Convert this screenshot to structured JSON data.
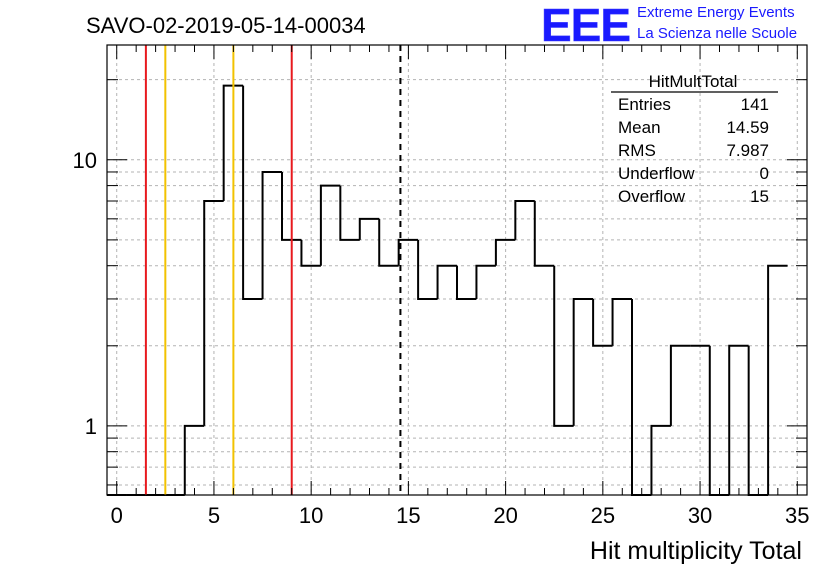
{
  "header": {
    "run_title": "SAVO-02-2019-05-14-00034",
    "logo_text": "EEE",
    "project_line1": "Extreme Energy Events",
    "project_line2": "La Scienza nelle Scuole",
    "logo_color": "#1a1aff"
  },
  "stats_box": {
    "name": "HitMultTotal",
    "rows": [
      {
        "label": "Entries",
        "value": "141"
      },
      {
        "label": "Mean",
        "value": "14.59"
      },
      {
        "label": "RMS",
        "value": "7.987"
      },
      {
        "label": "Underflow",
        "value": "0"
      },
      {
        "label": "Overflow",
        "value": "15"
      }
    ]
  },
  "chart_data": {
    "type": "histogram",
    "title": "SAVO-02-2019-05-14-00034",
    "xlabel": "Hit multiplicity Total",
    "ylabel": "",
    "xlim": [
      -0.5,
      35.5
    ],
    "ylim": [
      0.55,
      27
    ],
    "y_scale": "log",
    "grid": true,
    "x_ticks": [
      0,
      5,
      10,
      15,
      20,
      25,
      30,
      35
    ],
    "y_ticks": [
      {
        "value": 1,
        "label": "1"
      },
      {
        "value": 10,
        "label": "10"
      }
    ],
    "bins": {
      "edges_start": -0.5,
      "width": 1,
      "counts": [
        0,
        0,
        0,
        0,
        1,
        7,
        19,
        3,
        9,
        5,
        4,
        8,
        5,
        6,
        4,
        5,
        3,
        4,
        3,
        4,
        5,
        7,
        4,
        1,
        3,
        2,
        3,
        0,
        1,
        2,
        2,
        0,
        2,
        0,
        4
      ]
    },
    "reference_lines": [
      {
        "x": 1.5,
        "color": "#e8191e",
        "style": "solid"
      },
      {
        "x": 2.5,
        "color": "#f2c200",
        "style": "solid"
      },
      {
        "x": 6.0,
        "color": "#f2c200",
        "style": "solid"
      },
      {
        "x": 9.0,
        "color": "#e8191e",
        "style": "solid"
      },
      {
        "x": 14.59,
        "color": "#000000",
        "style": "dashed"
      }
    ],
    "histogram_color": "#000000"
  }
}
